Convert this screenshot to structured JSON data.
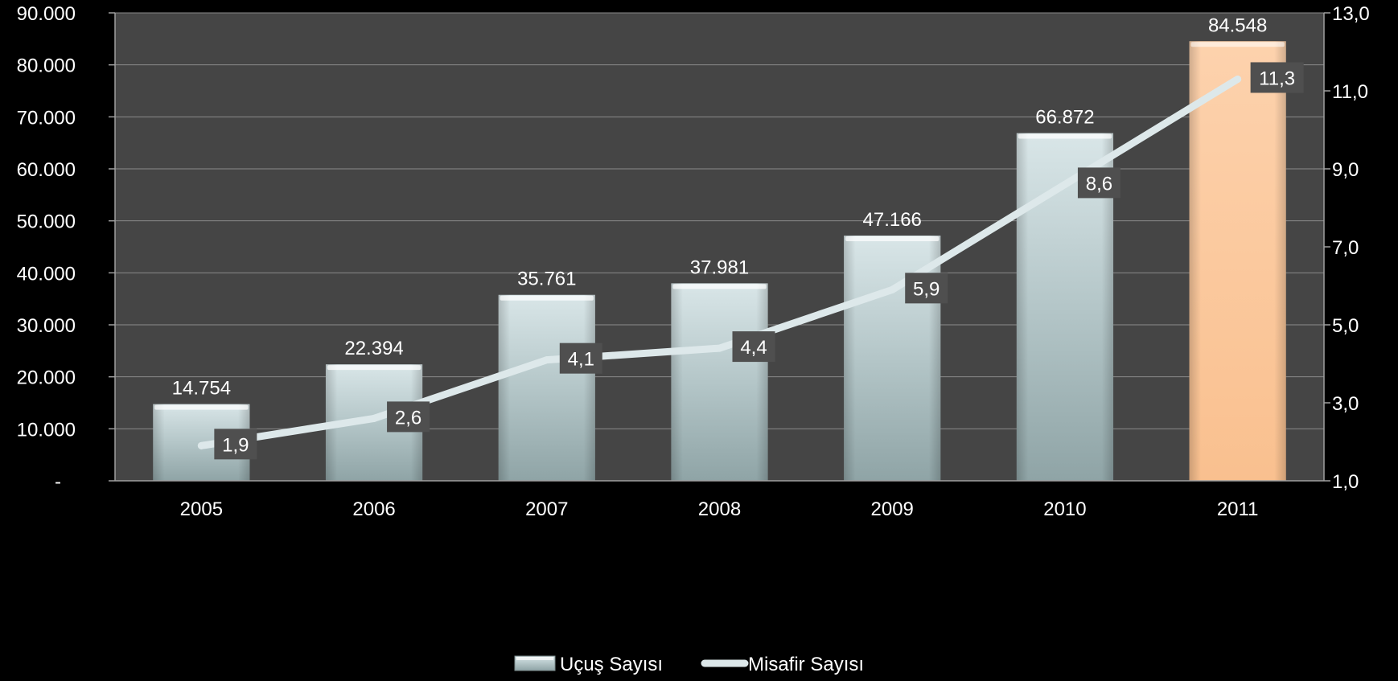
{
  "chart_data": {
    "type": "bar",
    "categories": [
      "2005",
      "2006",
      "2007",
      "2008",
      "2009",
      "2010",
      "2011"
    ],
    "series": [
      {
        "name": "Uçuş Sayısı",
        "type": "bar",
        "axis": "left",
        "values": [
          14754,
          22394,
          35761,
          37981,
          47166,
          66872,
          84548
        ],
        "value_labels": [
          "14.754",
          "22.394",
          "35.761",
          "37.981",
          "47.166",
          "66.872",
          "84.548"
        ],
        "highlight_index": 6
      },
      {
        "name": "Misafir Sayısı",
        "type": "line",
        "axis": "right",
        "values": [
          1.9,
          2.6,
          4.1,
          4.4,
          5.9,
          8.6,
          11.3
        ],
        "value_labels": [
          "1,9",
          "2,6",
          "4,1",
          "4,4",
          "5,9",
          "8,6",
          "11,3"
        ]
      }
    ],
    "y_left": {
      "range": [
        0,
        90000
      ],
      "ticks": [
        0,
        10000,
        20000,
        30000,
        40000,
        50000,
        60000,
        70000,
        80000,
        90000
      ],
      "tick_labels": [
        "-",
        "10.000",
        "20.000",
        "30.000",
        "40.000",
        "50.000",
        "60.000",
        "70.000",
        "80.000",
        "90.000"
      ]
    },
    "y_right": {
      "range": [
        1,
        13
      ],
      "ticks": [
        1,
        3,
        5,
        7,
        9,
        11,
        13
      ],
      "tick_labels": [
        "1,0",
        "3,0",
        "5,0",
        "7,0",
        "9,0",
        "11,0",
        "13,0"
      ]
    },
    "grid": true,
    "legend_position": "bottom",
    "colors": {
      "background": "#000000",
      "plot_area": "#454545",
      "bar": "#b4c6c8",
      "bar_highlight": "#fcc698",
      "line": "#dde8ea",
      "label_box": "#4f4f4f",
      "text": "#ffffff"
    }
  }
}
